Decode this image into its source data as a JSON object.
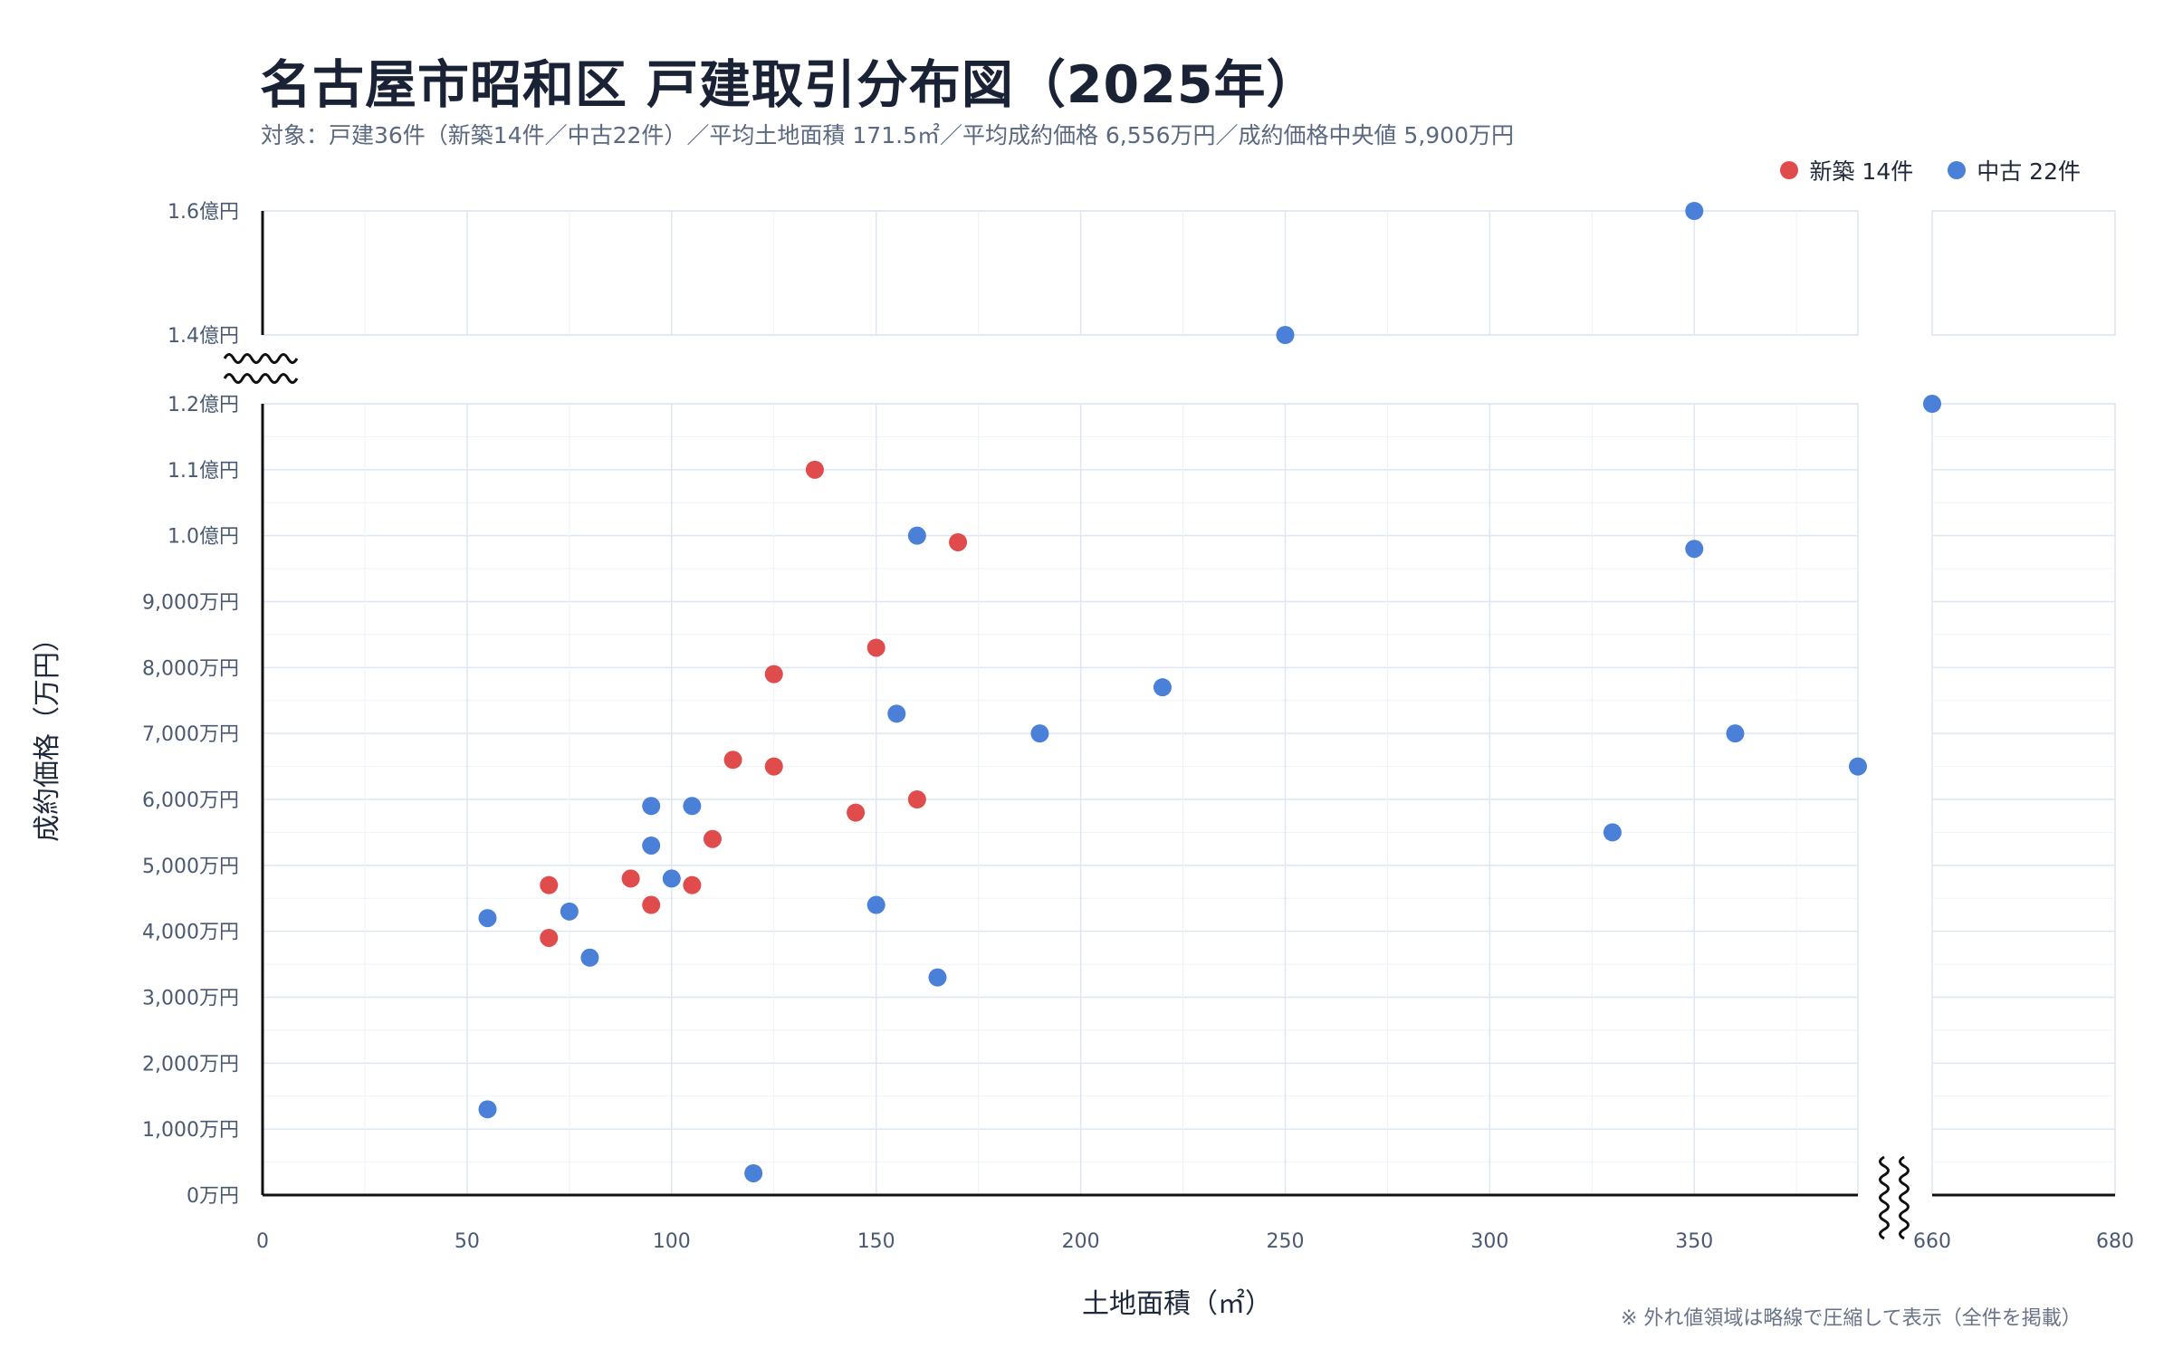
{
  "header": {
    "title": "名古屋市昭和区 戸建取引分布図（2025年）",
    "subtitle": "対象：戸建36件（新築14件／中古22件）／平均土地面積 171.5㎡／平均成約価格 6,556万円／成約価格中央値 5,900万円"
  },
  "legend": {
    "new_label": "新築 14件",
    "used_label": "中古 22件"
  },
  "footnote": "※ 外れ値領域は略線で圧縮して表示（全件を掲載）",
  "chart_data": {
    "type": "scatter",
    "xlabel": "土地面積（㎡）",
    "ylabel": "成約価格（万円）",
    "x_ticks": [
      "0",
      "50",
      "100",
      "150",
      "200",
      "250",
      "300",
      "350",
      "660",
      "680"
    ],
    "y_ticks": [
      "0万円",
      "1,000万円",
      "2,000万円",
      "3,000万円",
      "4,000万円",
      "5,000万円",
      "6,000万円",
      "7,000万円",
      "8,000万円",
      "9,000万円",
      "1.0億円",
      "1.1億円",
      "1.2億円",
      "1.4億円",
      "1.6億円"
    ],
    "x_axis_break": [
      390,
      660
    ],
    "y_axis_break": [
      12000,
      14000
    ],
    "grid": true,
    "legend_position": "top-right",
    "colors": {
      "新築": "#e04b4b",
      "中古": "#4a80d8"
    },
    "series": [
      {
        "name": "新築",
        "points": [
          {
            "x": 70,
            "y": 4700
          },
          {
            "x": 70,
            "y": 3900
          },
          {
            "x": 90,
            "y": 4800
          },
          {
            "x": 95,
            "y": 4400
          },
          {
            "x": 105,
            "y": 4700
          },
          {
            "x": 110,
            "y": 5400
          },
          {
            "x": 115,
            "y": 6600
          },
          {
            "x": 125,
            "y": 7900
          },
          {
            "x": 125,
            "y": 6500
          },
          {
            "x": 135,
            "y": 11000
          },
          {
            "x": 145,
            "y": 5800
          },
          {
            "x": 150,
            "y": 8300
          },
          {
            "x": 160,
            "y": 6000
          },
          {
            "x": 170,
            "y": 9900
          }
        ]
      },
      {
        "name": "中古",
        "points": [
          {
            "x": 55,
            "y": 4200
          },
          {
            "x": 55,
            "y": 1300
          },
          {
            "x": 75,
            "y": 4300
          },
          {
            "x": 80,
            "y": 3600
          },
          {
            "x": 95,
            "y": 5900
          },
          {
            "x": 95,
            "y": 5300
          },
          {
            "x": 100,
            "y": 4800
          },
          {
            "x": 105,
            "y": 5900
          },
          {
            "x": 120,
            "y": 330
          },
          {
            "x": 150,
            "y": 4400
          },
          {
            "x": 155,
            "y": 7300
          },
          {
            "x": 160,
            "y": 10000
          },
          {
            "x": 165,
            "y": 3300
          },
          {
            "x": 190,
            "y": 7000
          },
          {
            "x": 220,
            "y": 7700
          },
          {
            "x": 250,
            "y": 14000
          },
          {
            "x": 330,
            "y": 5500
          },
          {
            "x": 350,
            "y": 16000
          },
          {
            "x": 350,
            "y": 9800
          },
          {
            "x": 360,
            "y": 7000
          },
          {
            "x": 390,
            "y": 6500
          },
          {
            "x": 660,
            "y": 12000
          }
        ]
      }
    ]
  }
}
